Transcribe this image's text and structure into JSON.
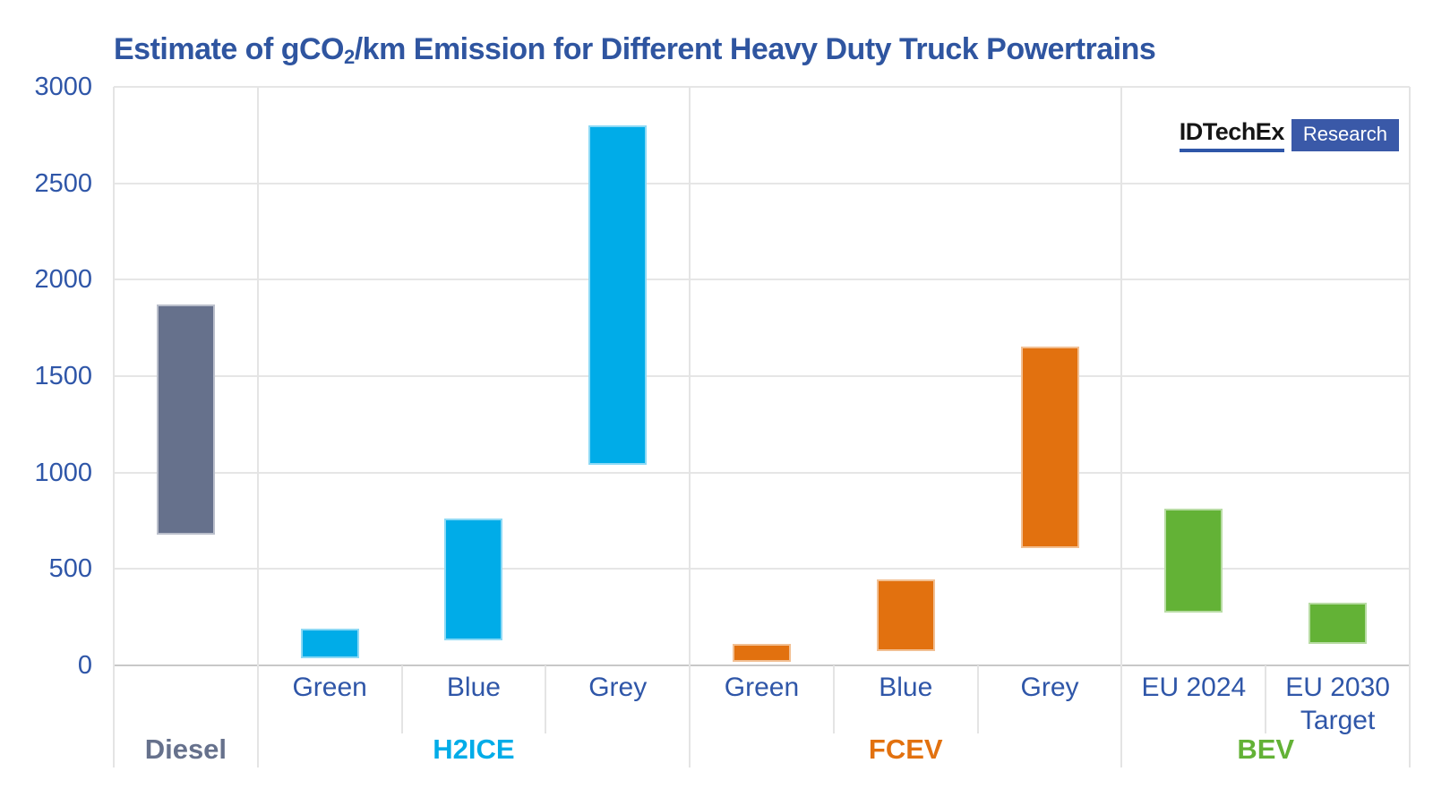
{
  "title_parts": {
    "pre": "Estimate of gCO",
    "sub": "2",
    "post": "/km Emission for Different Heavy Duty Truck Powertrains"
  },
  "logo": {
    "brand": "IDTechEx",
    "suffix": "Research"
  },
  "colors": {
    "title_text": "#2F55A0",
    "axis_text": "#2F56A8",
    "gridline": "#E6E6E6",
    "zero_axis_line": "#C8C8C8",
    "diesel": "#66718C",
    "h2ice": "#00ACE8",
    "fcev": "#E2710F",
    "bev": "#63B236",
    "logo_badge": "#3A59A8"
  },
  "chart_data": {
    "type": "bar",
    "variant": "floating-range-columns",
    "title": "Estimate of gCO₂/km Emission for Different Heavy Duty Truck Powertrains",
    "xlabel": "",
    "ylabel": "",
    "ylim": [
      0,
      3000
    ],
    "yticks": [
      0,
      500,
      1000,
      1500,
      2000,
      2500,
      3000
    ],
    "grid": "horizontal",
    "legend": "none",
    "groups": [
      {
        "label": "Diesel",
        "color": "#66718C",
        "bars": [
          {
            "label": "",
            "low": 680,
            "high": 1870
          }
        ]
      },
      {
        "label": "H2ICE",
        "color": "#00ACE8",
        "bars": [
          {
            "label": "Green",
            "low": 35,
            "high": 190
          },
          {
            "label": "Blue",
            "low": 130,
            "high": 760
          },
          {
            "label": "Grey",
            "low": 1040,
            "high": 2800
          }
        ]
      },
      {
        "label": "FCEV",
        "color": "#E2710F",
        "bars": [
          {
            "label": "Green",
            "low": 20,
            "high": 110
          },
          {
            "label": "Blue",
            "low": 75,
            "high": 445
          },
          {
            "label": "Grey",
            "low": 610,
            "high": 1655
          }
        ]
      },
      {
        "label": "BEV",
        "color": "#63B236",
        "bars": [
          {
            "label": "EU 2024",
            "low": 275,
            "high": 815
          },
          {
            "label": "EU 2030 Target",
            "low": 110,
            "high": 325
          }
        ]
      }
    ]
  }
}
